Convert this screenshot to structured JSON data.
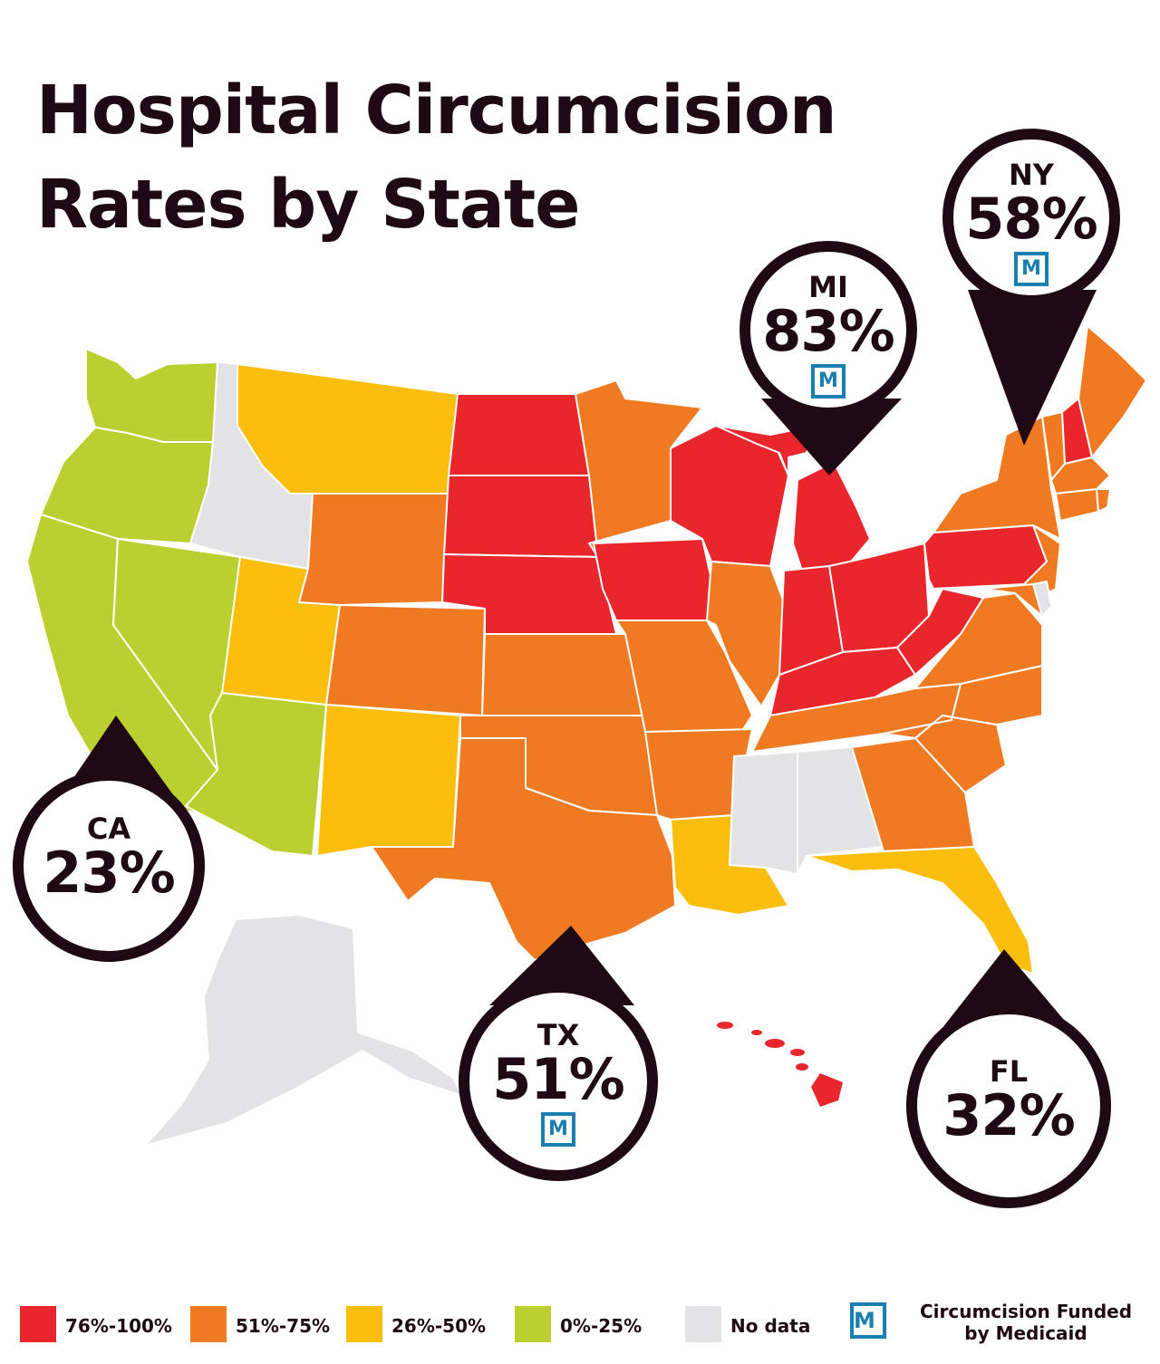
{
  "title_line1": "Hospital Circumcision",
  "title_line2": "Rates by State",
  "colors": {
    "high": "#e8262b",
    "mid": "#f07a22",
    "low": "#fbbe0c",
    "lowest": "#b9d030",
    "none": "#e3e3e6",
    "dark": "#1f0a14",
    "medicaid": "#1a7fb0"
  },
  "callouts": [
    {
      "code": "NY",
      "pct": "58%",
      "medicaid": "M"
    },
    {
      "code": "MI",
      "pct": "83%",
      "medicaid": "M"
    },
    {
      "code": "CA",
      "pct": "23%",
      "medicaid": ""
    },
    {
      "code": "TX",
      "pct": "51%",
      "medicaid": "M"
    },
    {
      "code": "FL",
      "pct": "32%",
      "medicaid": ""
    }
  ],
  "legend": [
    {
      "label": "76%-100%",
      "color": "#e8262b"
    },
    {
      "label": "51%-75%",
      "color": "#f07a22"
    },
    {
      "label": "26%-50%",
      "color": "#fbbe0c"
    },
    {
      "label": "0%-25%",
      "color": "#b9d030"
    },
    {
      "label": "No data",
      "color": "#e3e3e6"
    }
  ],
  "legend_medicaid": {
    "icon": "M",
    "line1": "Circumcision Funded",
    "line2": "by Medicaid"
  }
}
